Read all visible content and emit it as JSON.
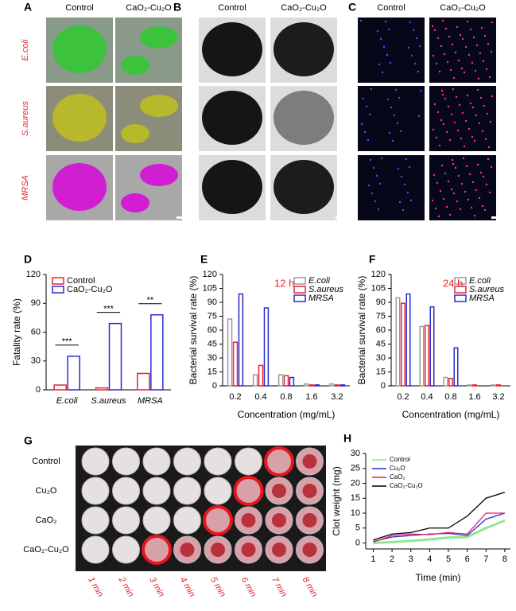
{
  "panels": {
    "A": {
      "label": "A",
      "columns": [
        "Control",
        "CaO₂-Cu₂O"
      ],
      "rows": [
        "E.coli",
        "S.aureus",
        "MRSA"
      ]
    },
    "B": {
      "label": "B",
      "columns": [
        "Control",
        "CaO₂-Cu₂O"
      ]
    },
    "C": {
      "label": "C",
      "columns": [
        "Control",
        "CaO₂-Cu₂O"
      ]
    },
    "G": {
      "label": "G",
      "rows": [
        "Control",
        "Cu₂O",
        "CaO₂",
        "CaO₂-Cu₂O"
      ],
      "columns": [
        "1 min",
        "2 min",
        "3 min",
        "4 min",
        "5 min",
        "6 min",
        "7 min",
        "8 min"
      ]
    }
  },
  "chart_data": [
    {
      "type": "bar",
      "label": "D",
      "ylabel": "Fatality rate (%)",
      "categories": [
        "E.coli",
        "S.aureus",
        "MRSA"
      ],
      "series": [
        {
          "name": "Control",
          "color": "#e8262d",
          "values": [
            5,
            2,
            17
          ]
        },
        {
          "name": "CaO₂-Cu₂O",
          "color": "#2b2bd0",
          "values": [
            35,
            69,
            78
          ]
        }
      ],
      "ylim": [
        0,
        120
      ],
      "yticks": [
        0,
        30,
        60,
        90,
        120
      ],
      "legend": "upper left",
      "annotations": [
        "***",
        "***",
        "**"
      ]
    },
    {
      "type": "bar",
      "label": "E",
      "ylabel": "Bacterial survival rate (%)",
      "xlabel": "Concentration (mg/mL)",
      "annotation": "12 h",
      "categories": [
        "0.2",
        "0.4",
        "0.8",
        "1.6",
        "3.2"
      ],
      "series": [
        {
          "name": "E.coli",
          "color": "#9a9a9a",
          "values": [
            72,
            12,
            12,
            2,
            2
          ]
        },
        {
          "name": "S.aureus",
          "color": "#e8262d",
          "values": [
            47,
            22,
            11,
            1,
            1
          ]
        },
        {
          "name": "MRSA",
          "color": "#2b2bd0",
          "values": [
            99,
            84,
            9,
            1,
            1
          ]
        }
      ],
      "ylim": [
        0,
        120
      ],
      "yticks": [
        0,
        15,
        30,
        45,
        60,
        75,
        90,
        105,
        120
      ],
      "legend": "upper right"
    },
    {
      "type": "bar",
      "label": "F",
      "ylabel": "Bacterial survival rate (%)",
      "xlabel": "Concentration (mg/mL)",
      "annotation": "24 h",
      "categories": [
        "0.2",
        "0.4",
        "0.8",
        "1.6",
        "3.2"
      ],
      "series": [
        {
          "name": "E.coli",
          "color": "#9a9a9a",
          "values": [
            95,
            64,
            9,
            1,
            1
          ]
        },
        {
          "name": "S.aureus",
          "color": "#e8262d",
          "values": [
            89,
            65,
            8,
            1,
            1
          ]
        },
        {
          "name": "MRSA",
          "color": "#2b2bd0",
          "values": [
            99,
            85,
            41,
            0,
            0
          ]
        }
      ],
      "ylim": [
        0,
        120
      ],
      "yticks": [
        0,
        15,
        30,
        45,
        60,
        75,
        90,
        105,
        120
      ],
      "legend": "upper right"
    },
    {
      "type": "line",
      "label": "H",
      "ylabel": "Clot weight (mg)",
      "xlabel": "Time (min)",
      "x": [
        1,
        2,
        3,
        4,
        5,
        6,
        7,
        8
      ],
      "series": [
        {
          "name": "Control",
          "color": "#8fe88f",
          "values": [
            0,
            0.3,
            0.7,
            1.2,
            1.8,
            2,
            5,
            7.5
          ]
        },
        {
          "name": "Cu₂O",
          "color": "#2b2bd0",
          "values": [
            0.5,
            2,
            2.5,
            3,
            3.2,
            2.5,
            8,
            10
          ]
        },
        {
          "name": "CaO₂",
          "color": "#e0206a",
          "values": [
            0.3,
            2.5,
            3,
            2.8,
            3.5,
            3,
            10,
            10
          ]
        },
        {
          "name": "CaO₂-Cu₂O",
          "color": "#000000",
          "values": [
            1,
            3,
            3.5,
            5,
            5,
            9,
            15,
            17
          ]
        }
      ],
      "xlim": [
        0.6,
        8.3
      ],
      "xticks": [
        1,
        2,
        3,
        4,
        5,
        6,
        7,
        8
      ],
      "ylim": [
        -2,
        30
      ],
      "yticks": [
        0,
        5,
        10,
        15,
        20,
        25,
        30
      ],
      "legend": "upper left"
    }
  ]
}
